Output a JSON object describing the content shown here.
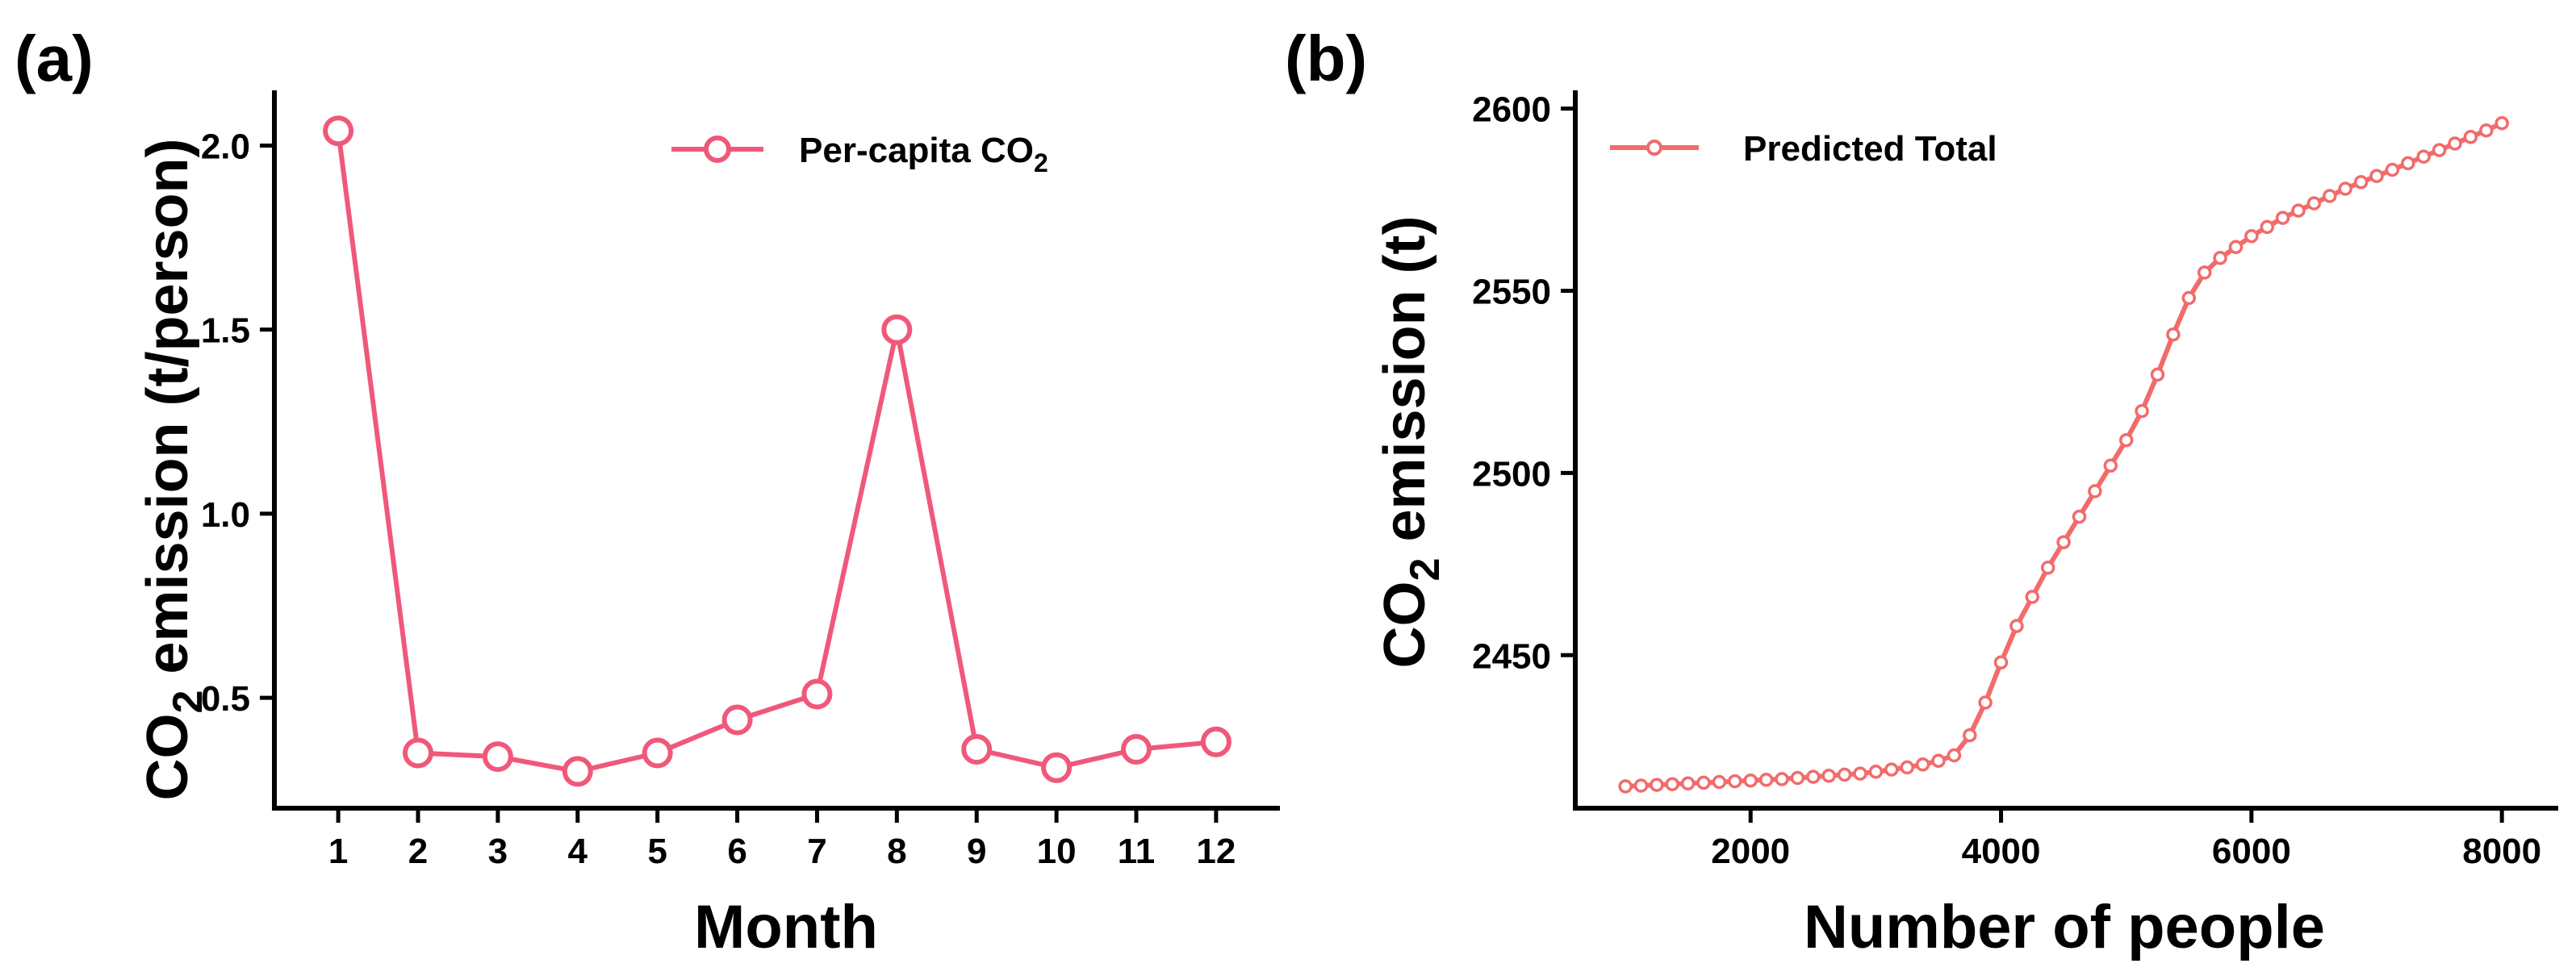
{
  "chart_data": [
    {
      "type": "line",
      "panel_label": "(a)",
      "title": "",
      "xlabel": "Month",
      "ylabel": {
        "pre": "CO",
        "sub": "2",
        "post": " emission (t/person)"
      },
      "x": [
        1,
        2,
        3,
        4,
        5,
        6,
        7,
        8,
        9,
        10,
        11,
        12
      ],
      "xticks": [
        "1",
        "2",
        "3",
        "4",
        "5",
        "6",
        "7",
        "8",
        "9",
        "10",
        "11",
        "12"
      ],
      "yticks": [
        "0.5",
        "1.0",
        "1.5",
        "2.0"
      ],
      "ylim": [
        0.2,
        2.15
      ],
      "xlim": [
        0.2,
        12.8
      ],
      "series": [
        {
          "name": "Per-capita CO2",
          "legend": {
            "pre": "Per-capita CO",
            "sub": "2"
          },
          "color": "#f0587a",
          "values": [
            2.04,
            0.35,
            0.34,
            0.3,
            0.35,
            0.44,
            0.51,
            1.5,
            0.36,
            0.31,
            0.36,
            0.38
          ]
        }
      ],
      "legend_position": "top-right"
    },
    {
      "type": "line",
      "panel_label": "(b)",
      "title": "",
      "xlabel": "Number of people",
      "ylabel": {
        "pre": "CO",
        "sub": "2",
        "post": " emission (t)"
      },
      "xticks": [
        "2000",
        "4000",
        "6000",
        "8000"
      ],
      "yticks": [
        "2450",
        "2500",
        "2550",
        "2600"
      ],
      "xlim": [
        600,
        8450
      ],
      "ylim": [
        2408,
        2605
      ],
      "series": [
        {
          "name": "Predicted Total",
          "color": "#f26b6b",
          "x": [
            1000,
            1125,
            1250,
            1375,
            1500,
            1625,
            1750,
            1875,
            2000,
            2125,
            2250,
            2375,
            2500,
            2625,
            2750,
            2875,
            3000,
            3125,
            3250,
            3375,
            3500,
            3625,
            3750,
            3875,
            4000,
            4125,
            4250,
            4375,
            4500,
            4625,
            4750,
            4875,
            5000,
            5125,
            5250,
            5375,
            5500,
            5625,
            5750,
            5875,
            6000,
            6125,
            6250,
            6375,
            6500,
            6625,
            6750,
            6875,
            7000,
            7125,
            7250,
            7375,
            7500,
            7625,
            7750,
            7875,
            8000
          ],
          "values": [
            2414.0,
            2414.2,
            2414.4,
            2414.6,
            2414.8,
            2415.0,
            2415.2,
            2415.4,
            2415.6,
            2415.8,
            2416.0,
            2416.3,
            2416.6,
            2416.9,
            2417.2,
            2417.5,
            2418.0,
            2418.6,
            2419.2,
            2420.0,
            2421.0,
            2422.5,
            2428.0,
            2437.0,
            2448.0,
            2458.0,
            2466.0,
            2474.0,
            2481.0,
            2488.0,
            2495.0,
            2502.0,
            2509.0,
            2517.0,
            2527.0,
            2538.0,
            2548.0,
            2555.0,
            2559.0,
            2562.0,
            2565.0,
            2567.5,
            2570.0,
            2572.0,
            2574.0,
            2576.0,
            2578.0,
            2579.8,
            2581.5,
            2583.2,
            2585.0,
            2586.8,
            2588.6,
            2590.4,
            2592.2,
            2594.0,
            2596.0
          ]
        }
      ],
      "legend_position": "top-left"
    }
  ]
}
